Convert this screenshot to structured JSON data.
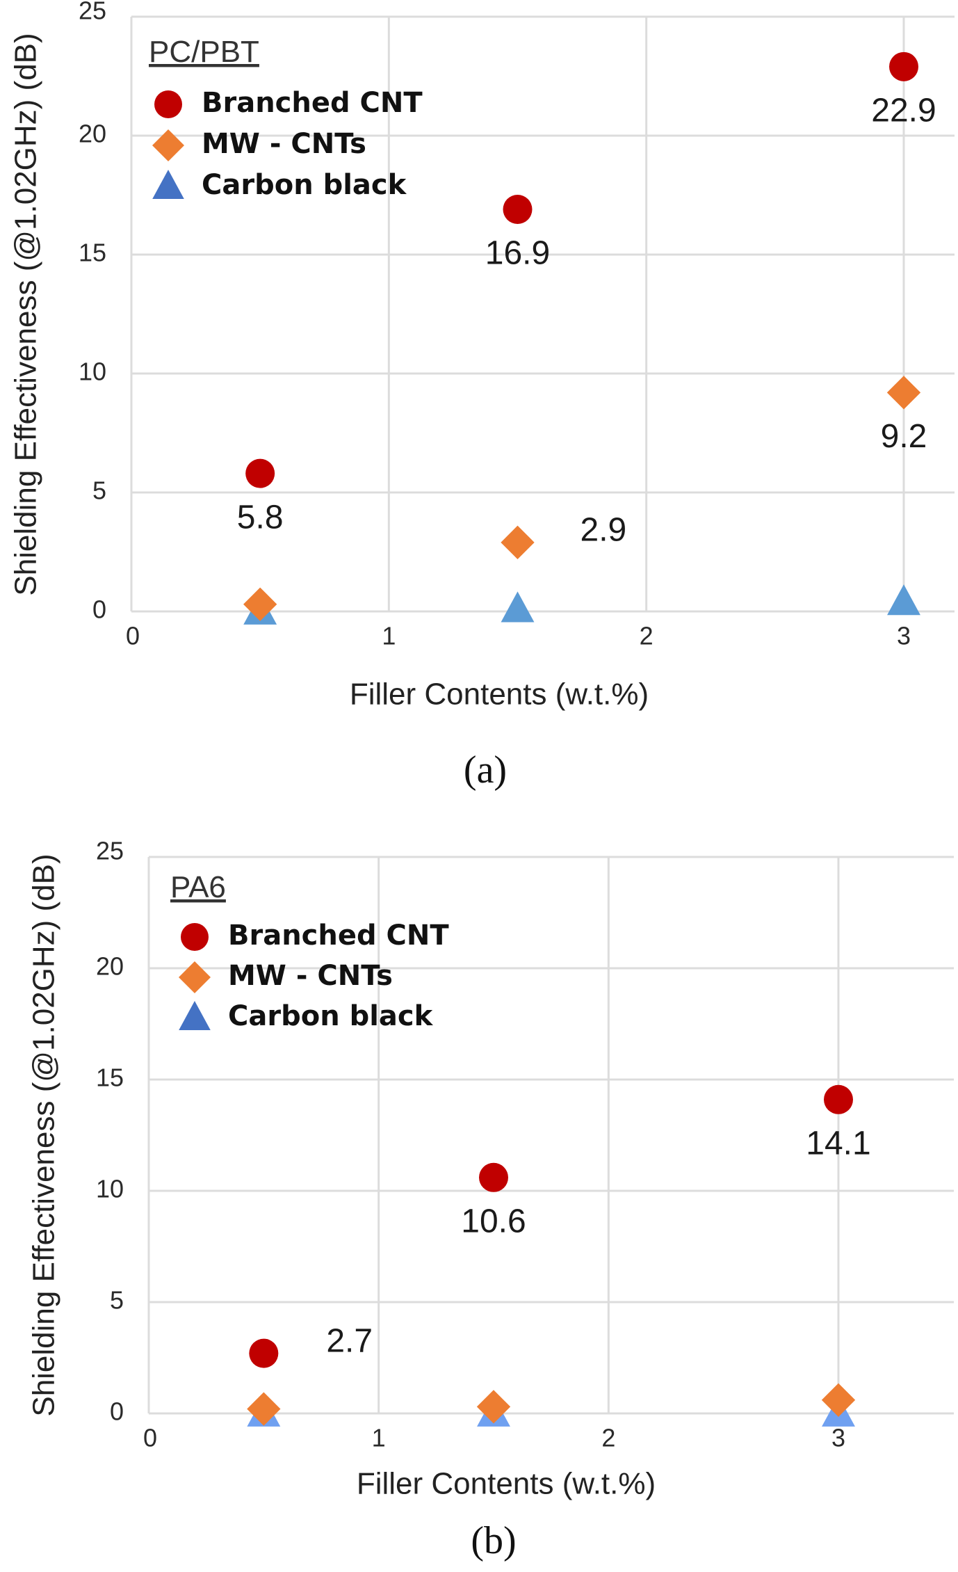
{
  "chart_data": [
    {
      "type": "scatter",
      "panel": "a",
      "caption": "(a)",
      "title": "PC/PBT",
      "xlabel": "Filler Contents (w.t.%)",
      "ylabel": "Shielding Effectiveness (@1.02GHz) (dB)",
      "xlim": [
        0,
        3.17
      ],
      "ylim": [
        0,
        25
      ],
      "xticks": [
        0,
        1,
        2,
        3
      ],
      "yticks": [
        0,
        5,
        10,
        15,
        20,
        25
      ],
      "grid": true,
      "legend_position": "top-left",
      "series": [
        {
          "name": "Branched CNT",
          "marker": "circle",
          "color": "#c00000",
          "x": [
            0.5,
            1.5,
            3
          ],
          "y": [
            5.8,
            16.9,
            22.9
          ],
          "labels": [
            {
              "text": "5.8",
              "pos": "below"
            },
            {
              "text": "16.9",
              "pos": "below"
            },
            {
              "text": "22.9",
              "pos": "below"
            }
          ]
        },
        {
          "name": "MW - CNTs",
          "marker": "diamond",
          "color": "#ed7d31",
          "x": [
            0.5,
            1.5,
            3
          ],
          "y": [
            0.3,
            2.9,
            9.2
          ],
          "labels": [
            null,
            {
              "text": "2.9",
              "pos": "right"
            },
            {
              "text": "9.2",
              "pos": "below"
            }
          ]
        },
        {
          "name": "Carbon black",
          "marker": "triangle",
          "color": "#5b9bd5",
          "legend_color": "#4472c4",
          "x": [
            0.5,
            1.5,
            3
          ],
          "y": [
            0.0,
            0.1,
            0.4
          ],
          "labels": [
            null,
            null,
            null
          ]
        }
      ]
    },
    {
      "type": "scatter",
      "panel": "b",
      "caption": "(b)",
      "title": "PA6",
      "xlabel": "Filler Contents (w.t.%)",
      "ylabel": "Shielding Effectiveness (@1.02GHz) (dB)",
      "xlim": [
        0,
        3.5
      ],
      "ylim": [
        0,
        25
      ],
      "xticks": [
        0,
        1,
        2,
        3
      ],
      "yticks": [
        0,
        5,
        10,
        15,
        20,
        25
      ],
      "grid": true,
      "legend_position": "top-left",
      "series": [
        {
          "name": "Branched CNT",
          "marker": "circle",
          "color": "#c00000",
          "x": [
            0.5,
            1.5,
            3
          ],
          "y": [
            2.7,
            10.6,
            14.1
          ],
          "labels": [
            {
              "text": "2.7",
              "pos": "right"
            },
            {
              "text": "10.6",
              "pos": "below"
            },
            {
              "text": "14.1",
              "pos": "below"
            }
          ]
        },
        {
          "name": "MW - CNTs",
          "marker": "diamond",
          "color": "#ed7d31",
          "x": [
            0.5,
            1.5,
            3
          ],
          "y": [
            0.2,
            0.3,
            0.6
          ],
          "labels": [
            null,
            null,
            null
          ]
        },
        {
          "name": "Carbon black",
          "marker": "triangle",
          "color": "#6fa0f0",
          "legend_color": "#4472c4",
          "x": [
            0.5,
            1.5,
            3
          ],
          "y": [
            0.0,
            0.0,
            0.0
          ],
          "labels": [
            null,
            null,
            null
          ]
        }
      ]
    }
  ]
}
